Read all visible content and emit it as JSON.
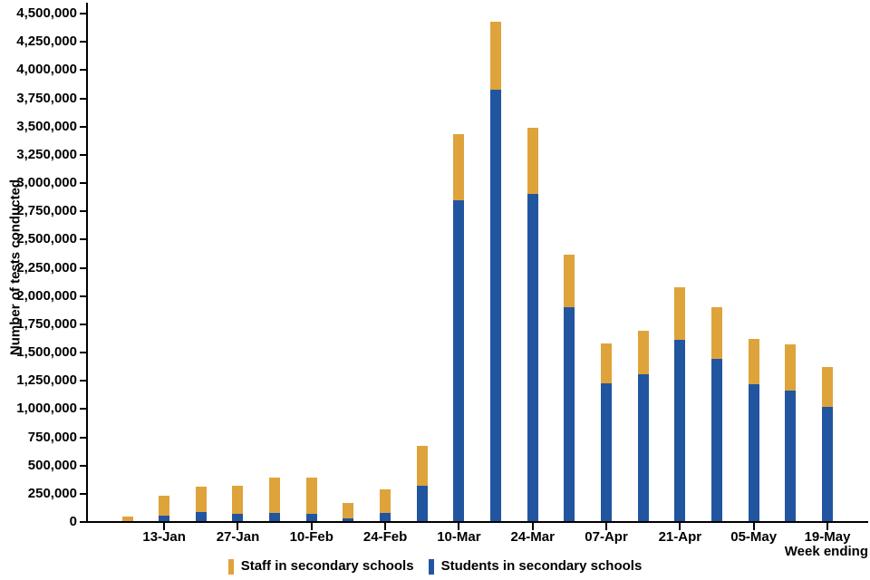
{
  "chart_data": {
    "type": "bar",
    "stacked": true,
    "title": "",
    "ylabel": "Number of tests conducted",
    "xlabel": "Week ending",
    "ylim": [
      0,
      4500000
    ],
    "ytick_interval": 250000,
    "ytick_labels": [
      "0",
      "250,000",
      "500,000",
      "750,000",
      "1,000,000",
      "1,250,000",
      "1,500,000",
      "1,750,000",
      "2,000,000",
      "2,250,000",
      "2,500,000",
      "2,750,000",
      "3,000,000",
      "3,250,000",
      "3,500,000",
      "3,750,000",
      "4,000,000",
      "4,250,000",
      "4,500,000"
    ],
    "categories": [
      "",
      "13-Jan",
      "",
      "27-Jan",
      "",
      "10-Feb",
      "",
      "24-Feb",
      "",
      "10-Mar",
      "",
      "24-Mar",
      "",
      "07-Apr",
      "",
      "21-Apr",
      "",
      "05-May",
      "",
      "19-May"
    ],
    "series": [
      {
        "name": "Staff in secondary schools",
        "color": "#DFA33B",
        "values": [
          35000,
          175000,
          225000,
          250000,
          310000,
          320000,
          135000,
          205000,
          350000,
          580000,
          600000,
          590000,
          470000,
          350000,
          380000,
          470000,
          460000,
          400000,
          415000,
          350000
        ]
      },
      {
        "name": "Students in secondary schools",
        "color": "#2155A0",
        "values": [
          10000,
          60000,
          90000,
          70000,
          80000,
          75000,
          30000,
          80000,
          320000,
          2850000,
          3830000,
          2900000,
          1900000,
          1230000,
          1310000,
          1610000,
          1440000,
          1220000,
          1160000,
          1020000
        ]
      }
    ],
    "legend_position": "bottom",
    "grid": false,
    "axis_color": "#000000",
    "background": "#FFFFFF"
  }
}
